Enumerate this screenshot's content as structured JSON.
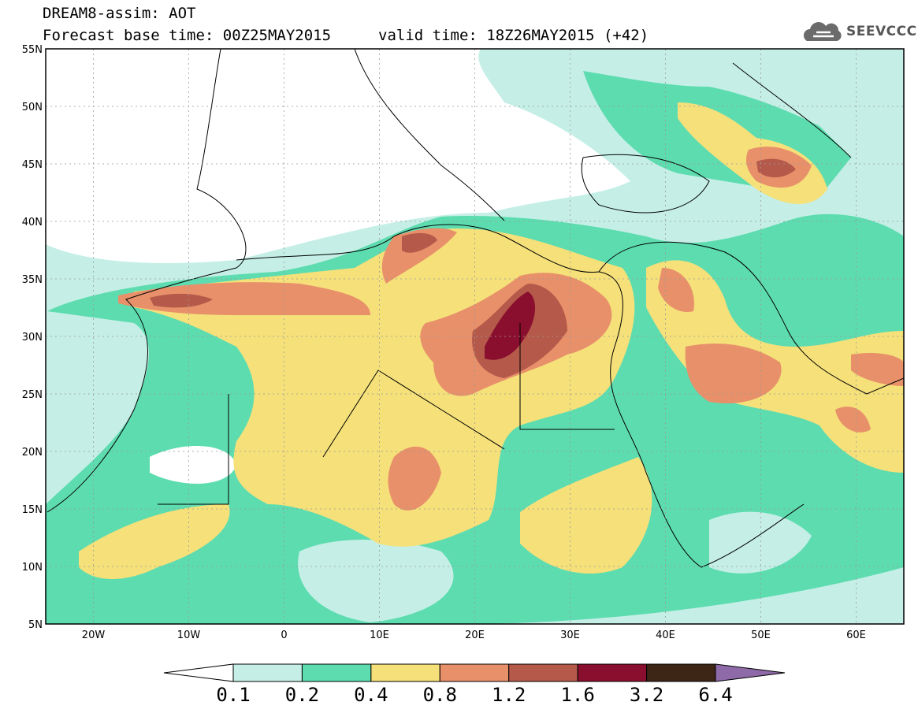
{
  "header": {
    "product": "DREAM8-assim: AOT",
    "base_time": "Forecast base time: 00Z25MAY2015",
    "valid_time": "valid time: 18Z26MAY2015 (+42)",
    "logo_text": "SEEVCCC",
    "logo_icon": "cloud-icon"
  },
  "map": {
    "extent": {
      "lon": [
        -25,
        65
      ],
      "lat": [
        5,
        55
      ]
    },
    "lat_ticks": [
      "55N",
      "50N",
      "45N",
      "40N",
      "35N",
      "30N",
      "25N",
      "20N",
      "15N",
      "10N",
      "5N"
    ],
    "lon_ticks": [
      "20W",
      "10W",
      "0",
      "10E",
      "20E",
      "30E",
      "40E",
      "50E",
      "60E"
    ]
  },
  "colorbar": {
    "labels": [
      "0.1",
      "0.2",
      "0.4",
      "0.8",
      "1.2",
      "1.6",
      "3.2",
      "6.4"
    ],
    "colors": [
      "#ffffff",
      "#c5efe6",
      "#5ddcb0",
      "#f5e07a",
      "#e8906a",
      "#b55a4a",
      "#8a0f2e",
      "#3d2616",
      "#8f6aa8"
    ]
  }
}
